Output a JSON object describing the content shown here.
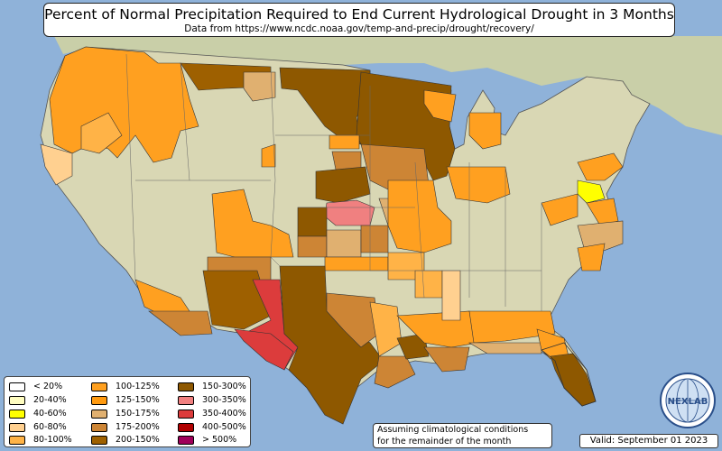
{
  "title": "Percent of Normal Precipitation Required to End Current Hydrological Drought in 3 Months",
  "subtitle": "Data from https://www.ncdc.noaa.gov/temp-and-precip/drought/recovery/",
  "legend": [
    {
      "label": "< 20%",
      "color": "#ffffff"
    },
    {
      "label": "20-40%",
      "color": "#fffdc0"
    },
    {
      "label": "40-60%",
      "color": "#ffff00"
    },
    {
      "label": "60-80%",
      "color": "#ffd090"
    },
    {
      "label": "80-100%",
      "color": "#ffb347"
    },
    {
      "label": "100-125%",
      "color": "#ffa020"
    },
    {
      "label": "125-150%",
      "color": "#ff9a10"
    },
    {
      "label": "150-175%",
      "color": "#e0b070"
    },
    {
      "label": "175-200%",
      "color": "#cd8535"
    },
    {
      "label": "200-150%",
      "color": "#9e6000"
    },
    {
      "label": "150-300%",
      "color": "#8e5800"
    },
    {
      "label": "300-350%",
      "color": "#f08080"
    },
    {
      "label": "350-400%",
      "color": "#dc3c3c"
    },
    {
      "label": "400-500%",
      "color": "#b00000"
    },
    {
      "label": "> 500%",
      "color": "#a0005a"
    }
  ],
  "note_line1": "Assuming climatological conditions",
  "note_line2": "for the remainder of the month",
  "valid": "Valid: September 01 2023",
  "logo_text": "NEXLAB",
  "colors": {
    "water": "#8fb2d9",
    "land": "#d9d7b4",
    "ocean_label": "none"
  }
}
